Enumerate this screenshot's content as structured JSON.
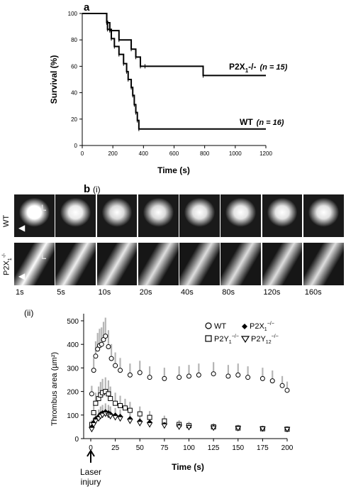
{
  "panel_a": {
    "label": "a"
  },
  "panel_b": {
    "label": "b",
    "sub_i": "(i)",
    "sub_ii": "(ii)"
  },
  "chart_data": [
    {
      "type": "line",
      "title": "",
      "xlabel": "Time (s)",
      "ylabel": "Survival (%)",
      "xlim": [
        0,
        1200
      ],
      "ylim": [
        0,
        100
      ],
      "xticks": [
        0,
        200,
        400,
        600,
        800,
        1000,
        1200
      ],
      "yticks": [
        0,
        20,
        40,
        60,
        80,
        100
      ],
      "grid": false,
      "step": true,
      "series": [
        {
          "name": "P2X1-/- (n = 15)",
          "label_main": "P2X",
          "label_sub": "1",
          "label_tail": "-/-",
          "label_n": "(n = 15)",
          "x": [
            0,
            160,
            180,
            240,
            320,
            350,
            380,
            410,
            790,
            1200
          ],
          "y": [
            100,
            93,
            87,
            80,
            73,
            67,
            60,
            60,
            53,
            53
          ]
        },
        {
          "name": "WT (n = 16)",
          "label_main": "WT",
          "label_n": "(n = 16)",
          "x": [
            0,
            160,
            165,
            190,
            210,
            240,
            270,
            290,
            300,
            320,
            330,
            340,
            350,
            360,
            370,
            1200
          ],
          "y": [
            100,
            94,
            88,
            81,
            75,
            69,
            62,
            56,
            50,
            44,
            38,
            31,
            25,
            19,
            12.5,
            12.5
          ]
        }
      ]
    },
    {
      "type": "scatter",
      "title": "",
      "xlabel": "Time (s)",
      "ylabel": "Thrombus area (µm²)",
      "xlim": [
        0,
        200
      ],
      "ylim": [
        0,
        500
      ],
      "xticks": [
        0,
        25,
        50,
        75,
        100,
        125,
        150,
        175,
        200
      ],
      "yticks": [
        0,
        100,
        200,
        300,
        400,
        500
      ],
      "grid": false,
      "legend_position": "top-right",
      "annotation": [
        "Laser",
        "injury"
      ],
      "series": [
        {
          "name": "WT",
          "marker": "circle",
          "x": [
            1,
            3,
            5,
            7,
            9,
            11,
            13,
            15,
            18,
            21,
            25,
            30,
            40,
            50,
            60,
            75,
            90,
            100,
            110,
            125,
            140,
            150,
            160,
            175,
            185,
            195,
            200
          ],
          "y": [
            190,
            290,
            350,
            380,
            395,
            400,
            420,
            435,
            390,
            340,
            310,
            290,
            270,
            280,
            260,
            255,
            260,
            265,
            270,
            275,
            265,
            270,
            260,
            255,
            245,
            225,
            205
          ]
        },
        {
          "name": "P2Y1-/-",
          "label_main": "P2Y",
          "label_sub": "1",
          "marker": "square",
          "x": [
            1,
            3,
            5,
            8,
            10,
            12,
            15,
            18,
            20,
            25,
            30,
            35,
            40,
            50,
            60,
            75,
            90,
            100,
            125,
            150,
            175,
            200
          ],
          "y": [
            60,
            110,
            150,
            170,
            185,
            195,
            200,
            190,
            170,
            150,
            140,
            130,
            120,
            105,
            90,
            75,
            60,
            55,
            50,
            45,
            42,
            40
          ]
        },
        {
          "name": "P2X1-/-",
          "label_main": "P2X",
          "label_sub": "1",
          "marker": "diamond",
          "x": [
            1,
            3,
            5,
            8,
            10,
            12,
            15,
            18,
            20,
            25,
            30,
            40,
            50,
            60,
            75,
            90,
            100,
            125,
            150,
            175,
            200
          ],
          "y": [
            50,
            70,
            85,
            95,
            105,
            110,
            115,
            110,
            105,
            100,
            95,
            85,
            75,
            70,
            60,
            55,
            50,
            48,
            45,
            42,
            40
          ]
        },
        {
          "name": "P2Y12-/-",
          "label_main": "P2Y",
          "label_sub": "12",
          "marker": "triangle-down",
          "x": [
            1,
            3,
            5,
            8,
            10,
            12,
            15,
            18,
            20,
            25,
            30,
            40,
            50,
            60,
            75,
            90,
            100,
            125,
            150,
            175,
            200
          ],
          "y": [
            40,
            60,
            75,
            85,
            95,
            100,
            105,
            100,
            95,
            90,
            85,
            75,
            65,
            60,
            55,
            50,
            48,
            46,
            44,
            42,
            40
          ]
        }
      ]
    }
  ],
  "image_strip": {
    "row_wt_label": "WT",
    "row_ko_label_main": "P2X",
    "row_ko_label_sub": "1",
    "row_ko_label_sup": "-/-",
    "L_marker": "L",
    "wt_intensity": [
      0,
      0.55,
      0.95,
      0.95,
      0.8,
      0.7,
      0.7,
      0.75
    ],
    "ko_intensity": [
      0.05,
      0.18,
      0.25,
      0.35,
      0.35,
      0.35,
      0.35,
      0.35
    ],
    "timepoints": [
      "1s",
      "5s",
      "10s",
      "20s",
      "40s",
      "80s",
      "120s",
      "160s"
    ]
  }
}
